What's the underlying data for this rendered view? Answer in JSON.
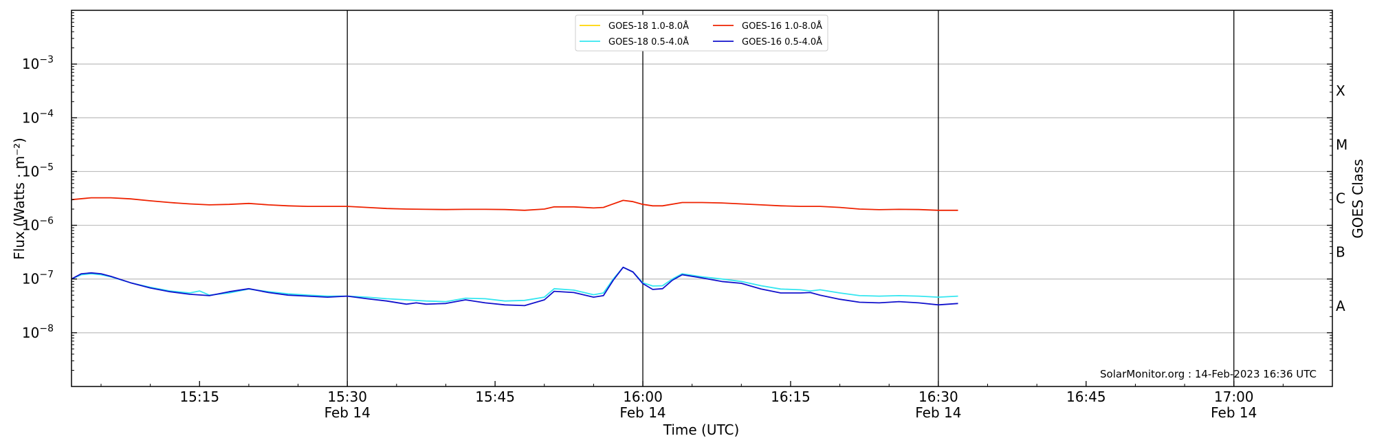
{
  "chart_data": {
    "type": "line",
    "xlabel": "Time (UTC)",
    "ylabel": "Flux (Watts · m⁻²)",
    "ylabel_right": "GOES Class",
    "y_scale": "log",
    "ylim": [
      1e-09,
      0.01
    ],
    "xlim": [
      "2023-02-14 15:02",
      "2023-02-14 17:10"
    ],
    "grid": "horizontal",
    "legend_position": "top-center",
    "x_tick_labels": [
      {
        "time": "15:15",
        "date": ""
      },
      {
        "time": "15:30",
        "date": "Feb 14"
      },
      {
        "time": "15:45",
        "date": ""
      },
      {
        "time": "16:00",
        "date": "Feb 14"
      },
      {
        "time": "16:15",
        "date": ""
      },
      {
        "time": "16:30",
        "date": "Feb 14"
      },
      {
        "time": "16:45",
        "date": ""
      },
      {
        "time": "17:00",
        "date": "Feb 14"
      }
    ],
    "x_ticks": [
      "15:15",
      "15:30",
      "15:45",
      "16:00",
      "16:15",
      "16:30",
      "16:45",
      "17:00"
    ],
    "vertical_lines": [
      "15:30",
      "16:00",
      "16:30",
      "17:00"
    ],
    "y_tick_labels": [
      {
        "value": 1e-08,
        "base": "10",
        "exp": "−8"
      },
      {
        "value": 1e-07,
        "base": "10",
        "exp": "−7"
      },
      {
        "value": 1e-06,
        "base": "10",
        "exp": "−6"
      },
      {
        "value": 1e-05,
        "base": "10",
        "exp": "−5"
      },
      {
        "value": 0.0001,
        "base": "10",
        "exp": "−4"
      },
      {
        "value": 0.001,
        "base": "10",
        "exp": "−3"
      }
    ],
    "class_labels": [
      {
        "label": "A",
        "value": 3.16e-08
      },
      {
        "label": "B",
        "value": 3.16e-07
      },
      {
        "label": "C",
        "value": 3.16e-06
      },
      {
        "label": "M",
        "value": 3.16e-05
      },
      {
        "label": "X",
        "value": 0.000316
      }
    ],
    "legend": [
      {
        "name": "GOES-18 1.0-8.0Å",
        "color": "#ffd400"
      },
      {
        "name": "GOES-18 0.5-4.0Å",
        "color": "#33e6f0"
      },
      {
        "name": "GOES-16 1.0-8.0Å",
        "color": "#ee2200"
      },
      {
        "name": "GOES-16 0.5-4.0Å",
        "color": "#1010cc"
      }
    ],
    "series": [
      {
        "name": "GOES-16 1.0-8.0Å",
        "color": "#ee2200",
        "x": [
          "15:02",
          "15:04",
          "15:06",
          "15:08",
          "15:10",
          "15:12",
          "15:14",
          "15:16",
          "15:18",
          "15:20",
          "15:22",
          "15:24",
          "15:26",
          "15:28",
          "15:30",
          "15:32",
          "15:34",
          "15:36",
          "15:38",
          "15:40",
          "15:42",
          "15:44",
          "15:46",
          "15:48",
          "15:50",
          "15:51",
          "15:53",
          "15:55",
          "15:56",
          "15:58",
          "15:59",
          "16:00",
          "16:01",
          "16:02",
          "16:04",
          "16:06",
          "16:08",
          "16:10",
          "16:12",
          "16:14",
          "16:16",
          "16:18",
          "16:20",
          "16:22",
          "16:24",
          "16:26",
          "16:28",
          "16:30",
          "16:32"
        ],
        "y": [
          3e-06,
          3.25e-06,
          3.25e-06,
          3.1e-06,
          2.85e-06,
          2.65e-06,
          2.5e-06,
          2.4e-06,
          2.45e-06,
          2.55e-06,
          2.4e-06,
          2.3e-06,
          2.25e-06,
          2.25e-06,
          2.25e-06,
          2.15e-06,
          2.05e-06,
          2e-06,
          1.98e-06,
          1.96e-06,
          1.98e-06,
          1.98e-06,
          1.96e-06,
          1.9e-06,
          2e-06,
          2.2e-06,
          2.2e-06,
          2.1e-06,
          2.15e-06,
          2.9e-06,
          2.75e-06,
          2.45e-06,
          2.3e-06,
          2.3e-06,
          2.65e-06,
          2.65e-06,
          2.6e-06,
          2.5e-06,
          2.4e-06,
          2.3e-06,
          2.25e-06,
          2.25e-06,
          2.15e-06,
          2e-06,
          1.95e-06,
          1.98e-06,
          1.96e-06,
          1.9e-06,
          1.9e-06
        ]
      },
      {
        "name": "GOES-18 0.5-4.0Å",
        "color": "#33e6f0",
        "x": [
          "15:02",
          "15:03",
          "15:04",
          "15:05",
          "15:06",
          "15:08",
          "15:10",
          "15:12",
          "15:14",
          "15:15",
          "15:16",
          "15:18",
          "15:20",
          "15:22",
          "15:24",
          "15:26",
          "15:28",
          "15:30",
          "15:32",
          "15:34",
          "15:36",
          "15:38",
          "15:40",
          "15:42",
          "15:44",
          "15:46",
          "15:48",
          "15:50",
          "15:51",
          "15:53",
          "15:55",
          "15:56",
          "15:57",
          "15:58",
          "15:59",
          "16:00",
          "16:01",
          "16:02",
          "16:03",
          "16:04",
          "16:06",
          "16:08",
          "16:10",
          "16:12",
          "16:14",
          "16:16",
          "16:17",
          "16:18",
          "16:20",
          "16:22",
          "16:24",
          "16:26",
          "16:28",
          "16:30",
          "16:32"
        ],
        "y": [
          1e-07,
          1.2e-07,
          1.25e-07,
          1.2e-07,
          1.1e-07,
          8.5e-08,
          7e-08,
          6e-08,
          5.5e-08,
          6e-08,
          5e-08,
          5.5e-08,
          6.5e-08,
          5.8e-08,
          5.3e-08,
          5e-08,
          4.8e-08,
          4.8e-08,
          4.6e-08,
          4.3e-08,
          4.1e-08,
          3.9e-08,
          3.8e-08,
          4.4e-08,
          4.3e-08,
          3.9e-08,
          4e-08,
          4.6e-08,
          6.6e-08,
          6.2e-08,
          5.1e-08,
          5.5e-08,
          1e-07,
          1.65e-07,
          1.35e-07,
          8.5e-08,
          7.4e-08,
          7.5e-08,
          1e-07,
          1.25e-07,
          1.1e-07,
          1e-07,
          9e-08,
          7.5e-08,
          6.5e-08,
          6.3e-08,
          6e-08,
          6.3e-08,
          5.5e-08,
          4.9e-08,
          4.8e-08,
          4.9e-08,
          4.8e-08,
          4.6e-08,
          4.8e-08
        ]
      },
      {
        "name": "GOES-16 0.5-4.0Å",
        "color": "#1010cc",
        "x": [
          "15:02",
          "15:03",
          "15:04",
          "15:05",
          "15:06",
          "15:08",
          "15:10",
          "15:12",
          "15:14",
          "15:16",
          "15:18",
          "15:20",
          "15:22",
          "15:24",
          "15:26",
          "15:28",
          "15:30",
          "15:32",
          "15:34",
          "15:36",
          "15:37",
          "15:38",
          "15:40",
          "15:42",
          "15:44",
          "15:46",
          "15:48",
          "15:50",
          "15:51",
          "15:53",
          "15:55",
          "15:56",
          "15:57",
          "15:58",
          "15:59",
          "16:00",
          "16:01",
          "16:02",
          "16:03",
          "16:04",
          "16:06",
          "16:08",
          "16:10",
          "16:12",
          "16:14",
          "16:16",
          "16:17",
          "16:18",
          "16:20",
          "16:22",
          "16:24",
          "16:26",
          "16:28",
          "16:30",
          "16:32"
        ],
        "y": [
          1e-07,
          1.25e-07,
          1.3e-07,
          1.25e-07,
          1.12e-07,
          8.5e-08,
          6.8e-08,
          5.8e-08,
          5.2e-08,
          4.9e-08,
          5.8e-08,
          6.6e-08,
          5.6e-08,
          5e-08,
          4.8e-08,
          4.6e-08,
          4.8e-08,
          4.3e-08,
          3.9e-08,
          3.4e-08,
          3.6e-08,
          3.4e-08,
          3.5e-08,
          4.1e-08,
          3.6e-08,
          3.3e-08,
          3.2e-08,
          4.1e-08,
          5.9e-08,
          5.6e-08,
          4.6e-08,
          4.9e-08,
          9.5e-08,
          1.65e-07,
          1.35e-07,
          8.2e-08,
          6.4e-08,
          6.6e-08,
          9.5e-08,
          1.2e-07,
          1.05e-07,
          9e-08,
          8.3e-08,
          6.5e-08,
          5.5e-08,
          5.5e-08,
          5.6e-08,
          5e-08,
          4.2e-08,
          3.7e-08,
          3.6e-08,
          3.8e-08,
          3.6e-08,
          3.3e-08,
          3.5e-08
        ]
      }
    ]
  },
  "footer": {
    "credit": "SolarMonitor.org : 14-Feb-2023 16:36 UTC"
  }
}
